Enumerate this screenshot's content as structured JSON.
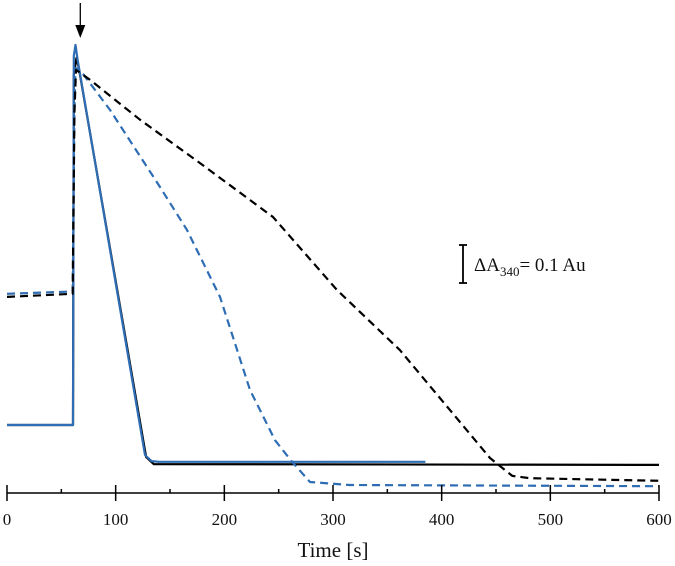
{
  "chart_data": {
    "type": "line",
    "title": "",
    "xlabel": "Time [s]",
    "ylabel": "",
    "xlim": [
      0,
      600
    ],
    "ylim": [
      0,
      1.297
    ],
    "x_ticks": [
      0,
      100,
      200,
      300,
      400,
      500,
      600
    ],
    "x_minor_step": 50,
    "y_axis_shown": false,
    "grid": false,
    "legend": "none",
    "annotations": {
      "arrow_at_time": 61,
      "scale_bar": {
        "symbol": "ΔA",
        "subscript": "340",
        "text": "= 0.1 Au",
        "value": 0.1
      }
    },
    "series": [
      {
        "color": "#000000",
        "style": "solid",
        "x": [
          0,
          60.7,
          61.5,
          64,
          66,
          128,
          135,
          600
        ],
        "y": [
          0.179,
          0.179,
          1.1,
          1.145,
          1.12,
          0.095,
          0.076,
          0.074
        ]
      },
      {
        "color": "#2e6db4",
        "style": "solid",
        "x": [
          0,
          60.7,
          61.5,
          63,
          65,
          127,
          133,
          140,
          385
        ],
        "y": [
          0.179,
          0.179,
          1.15,
          1.179,
          1.14,
          0.1,
          0.084,
          0.082,
          0.082
        ]
      },
      {
        "color": "#2e6db4",
        "style": "dashed",
        "x": [
          0,
          60.5,
          62,
          63,
          67.2,
          94.8,
          140.8,
          165.6,
          196,
          223.6,
          246.6,
          262.3,
          278.8,
          315,
          600
        ],
        "y": [
          0.524,
          0.53,
          1.0,
          1.118,
          1.113,
          1.008,
          0.805,
          0.692,
          0.516,
          0.271,
          0.139,
          0.082,
          0.029,
          0.021,
          0.018
        ]
      },
      {
        "color": "#000000",
        "style": "dashed",
        "x": [
          0,
          60.5,
          62,
          63.5,
          76.4,
          122.4,
          177.6,
          244.8,
          303.7,
          361.6,
          407.7,
          444.5,
          465,
          481.3,
          600
        ],
        "y": [
          0.516,
          0.524,
          1.0,
          1.113,
          1.087,
          0.982,
          0.868,
          0.726,
          0.534,
          0.376,
          0.218,
          0.092,
          0.045,
          0.039,
          0.032
        ]
      }
    ]
  }
}
